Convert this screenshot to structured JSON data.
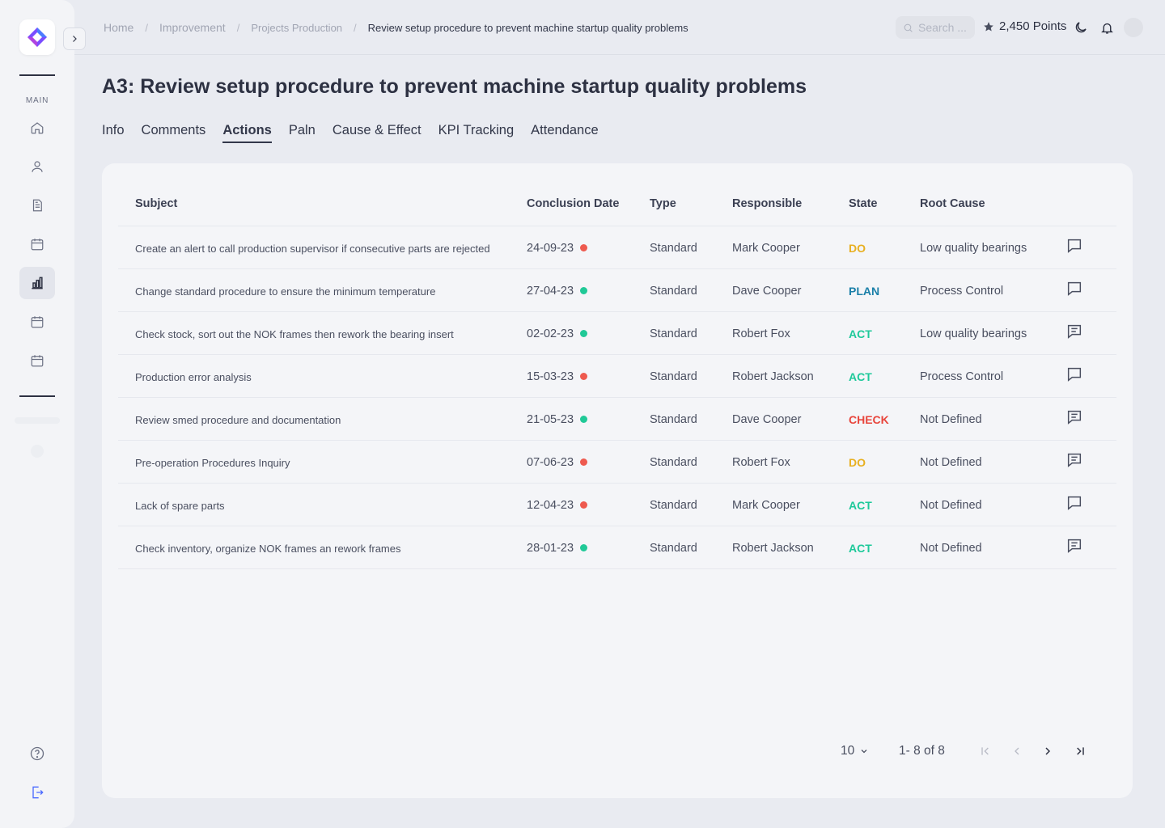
{
  "sidebar": {
    "section_label": "MAIN",
    "items": [
      {
        "name": "home-icon",
        "active": false
      },
      {
        "name": "user-icon",
        "active": false
      },
      {
        "name": "document-icon",
        "active": false
      },
      {
        "name": "calendar-icon",
        "active": false
      },
      {
        "name": "bar-chart-icon",
        "active": true
      },
      {
        "name": "calendar-icon",
        "active": false
      },
      {
        "name": "calendar-icon",
        "active": false
      }
    ],
    "bottom_items": [
      "help-icon",
      "logout-icon"
    ]
  },
  "breadcrumb": {
    "home": "Home",
    "improvement": "Improvement",
    "projects": "Projects Production",
    "current": "Review setup procedure to prevent machine startup quality problems"
  },
  "header": {
    "search_placeholder": "Search ...",
    "points": "2,450 Points"
  },
  "page": {
    "title": "A3: Review setup procedure to prevent machine startup quality problems"
  },
  "tabs": [
    {
      "label": "Info",
      "active": false
    },
    {
      "label": "Comments",
      "active": false
    },
    {
      "label": "Actions",
      "active": true
    },
    {
      "label": "Paln",
      "active": false
    },
    {
      "label": "Cause & Effect",
      "active": false
    },
    {
      "label": "KPI Tracking",
      "active": false
    },
    {
      "label": "Attendance",
      "active": false
    }
  ],
  "table": {
    "columns": {
      "subject": "Subject",
      "date": "Conclusion Date",
      "type": "Type",
      "responsible": "Responsible",
      "state": "State",
      "root_cause": "Root Cause"
    },
    "rows": [
      {
        "subject": "Create an alert to call production supervisor if consecutive parts are rejected",
        "date": "24-09-23",
        "status": "red",
        "type": "Standard",
        "responsible": "Mark Cooper",
        "state": "DO",
        "root_cause": "Low quality bearings",
        "has_comments": false
      },
      {
        "subject": "Change standard procedure to ensure the minimum temperature",
        "date": "27-04-23",
        "status": "green",
        "type": "Standard",
        "responsible": "Dave Cooper",
        "state": "PLAN",
        "root_cause": "Process Control",
        "has_comments": false
      },
      {
        "subject": "Check stock, sort out the NOK frames then rework the bearing insert",
        "date": "02-02-23",
        "status": "green",
        "type": "Standard",
        "responsible": "Robert Fox",
        "state": "ACT",
        "root_cause": "Low quality bearings",
        "has_comments": true
      },
      {
        "subject": "Production error analysis",
        "date": "15-03-23",
        "status": "red",
        "type": "Standard",
        "responsible": "Robert Jackson",
        "state": "ACT",
        "root_cause": "Process Control",
        "has_comments": false
      },
      {
        "subject": "Review smed procedure and documentation",
        "date": "21-05-23",
        "status": "green",
        "type": "Standard",
        "responsible": "Dave Cooper",
        "state": "CHECK",
        "root_cause": "Not Defined",
        "has_comments": true
      },
      {
        "subject": "Pre-operation Procedures Inquiry",
        "date": "07-06-23",
        "status": "red",
        "type": "Standard",
        "responsible": "Robert Fox",
        "state": "DO",
        "root_cause": "Not Defined",
        "has_comments": true
      },
      {
        "subject": "Lack of spare parts",
        "date": "12-04-23",
        "status": "red",
        "type": "Standard",
        "responsible": "Mark Cooper",
        "state": "ACT",
        "root_cause": "Not Defined",
        "has_comments": false
      },
      {
        "subject": "Check inventory, organize NOK frames an rework frames",
        "date": "28-01-23",
        "status": "green",
        "type": "Standard",
        "responsible": "Robert Jackson",
        "state": "ACT",
        "root_cause": "Not Defined",
        "has_comments": true
      }
    ]
  },
  "pagination": {
    "page_size": "10",
    "range": "1- 8 of 8"
  },
  "colors": {
    "state": {
      "DO": "#e8b021",
      "PLAN": "#1a7fa8",
      "ACT": "#1ec99a",
      "CHECK": "#e8453c"
    },
    "status": {
      "red": "#ee5a4f",
      "green": "#20c997"
    },
    "brand": "#7b4dff"
  }
}
